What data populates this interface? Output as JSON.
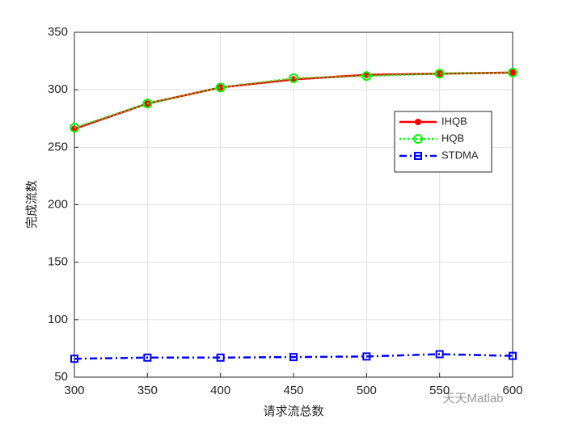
{
  "chart_data": {
    "type": "line",
    "x": [
      300,
      350,
      400,
      450,
      500,
      550,
      600
    ],
    "series": [
      {
        "name": "IHQB",
        "color": "#ff0000",
        "values": [
          266,
          288,
          302,
          309,
          313,
          314,
          315
        ]
      },
      {
        "name": "HQB",
        "color": "#00ff00",
        "values": [
          267,
          288,
          302,
          310,
          312,
          314,
          315
        ]
      },
      {
        "name": "STDMA",
        "color": "#0000ff",
        "values": [
          66,
          67,
          67,
          67.5,
          68,
          70,
          68.5
        ]
      }
    ],
    "xlabel": "请求流总数",
    "ylabel": "完成流数",
    "xlim": [
      300,
      600
    ],
    "xticks": [
      300,
      350,
      400,
      450,
      500,
      550,
      600
    ],
    "ylim": [
      50,
      350
    ],
    "yticks": [
      50,
      100,
      150,
      200,
      250,
      300,
      350
    ],
    "grid": true,
    "legend": "upper right",
    "watermark": "天天Matlab"
  }
}
